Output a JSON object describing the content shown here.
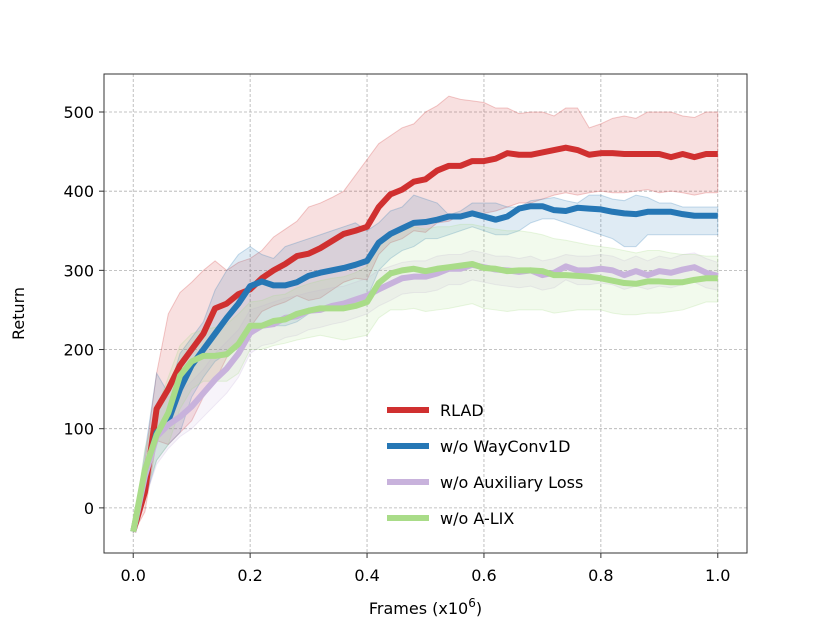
{
  "chart_data": {
    "type": "line",
    "xlabel": "Frames (x10",
    "xlabel_exponent": "6",
    "xlabel_suffix": ")",
    "ylabel": "Return",
    "xlim": [
      -0.05,
      1.05
    ],
    "ylim": [
      -57,
      548
    ],
    "xticks": [
      0.0,
      0.2,
      0.4,
      0.6,
      0.8,
      1.0
    ],
    "xtick_labels": [
      "0.0",
      "0.2",
      "0.4",
      "0.6",
      "0.8",
      "1.0"
    ],
    "yticks": [
      0,
      100,
      200,
      300,
      400,
      500
    ],
    "ytick_labels": [
      "0",
      "100",
      "200",
      "300",
      "400",
      "500"
    ],
    "grid": true,
    "legend_position": "lower-center",
    "x": [
      0.0,
      0.02,
      0.04,
      0.06,
      0.08,
      0.1,
      0.12,
      0.14,
      0.16,
      0.18,
      0.2,
      0.22,
      0.24,
      0.26,
      0.28,
      0.3,
      0.32,
      0.34,
      0.36,
      0.38,
      0.4,
      0.42,
      0.44,
      0.46,
      0.48,
      0.5,
      0.52,
      0.54,
      0.56,
      0.58,
      0.6,
      0.62,
      0.64,
      0.66,
      0.68,
      0.7,
      0.72,
      0.74,
      0.76,
      0.78,
      0.8,
      0.82,
      0.84,
      0.86,
      0.88,
      0.9,
      0.92,
      0.94,
      0.96,
      0.98,
      1.0
    ],
    "series": [
      {
        "name": "RLAD",
        "color": "#d03030",
        "values": [
          -30,
          20,
          125,
          150,
          180,
          200,
          220,
          252,
          258,
          270,
          276,
          290,
          300,
          308,
          318,
          321,
          328,
          337,
          346,
          350,
          355,
          380,
          396,
          402,
          412,
          415,
          426,
          432,
          432,
          438,
          438,
          441,
          448,
          446,
          446,
          449,
          452,
          455,
          452,
          446,
          448,
          448,
          447,
          447,
          447,
          447,
          443,
          447,
          443,
          447,
          447
        ],
        "upper": [
          -28,
          60,
          170,
          245,
          272,
          285,
          300,
          312,
          300,
          310,
          315,
          325,
          342,
          352,
          362,
          380,
          385,
          392,
          400,
          420,
          440,
          460,
          470,
          480,
          485,
          500,
          508,
          520,
          516,
          514,
          512,
          505,
          505,
          498,
          500,
          500,
          495,
          505,
          505,
          480,
          485,
          492,
          495,
          492,
          500,
          500,
          500,
          495,
          493,
          500,
          500
        ],
        "lower": [
          -32,
          -5,
          85,
          80,
          95,
          110,
          140,
          160,
          190,
          210,
          228,
          248,
          255,
          260,
          268,
          262,
          265,
          275,
          285,
          290,
          288,
          320,
          335,
          340,
          350,
          348,
          360,
          362,
          370,
          370,
          372,
          375,
          380,
          385,
          385,
          390,
          395,
          398,
          395,
          398,
          400,
          398,
          398,
          400,
          402,
          398,
          400,
          398,
          395,
          398,
          398
        ]
      },
      {
        "name": "w/o WayConv1D",
        "color": "#2677b5",
        "values": [
          -30,
          40,
          95,
          110,
          150,
          180,
          200,
          220,
          240,
          258,
          280,
          286,
          281,
          281,
          285,
          293,
          297,
          300,
          303,
          307,
          312,
          335,
          346,
          353,
          360,
          361,
          364,
          368,
          368,
          372,
          368,
          364,
          368,
          378,
          381,
          381,
          376,
          375,
          379,
          378,
          377,
          374,
          372,
          371,
          374,
          374,
          374,
          371,
          369,
          369,
          369
        ],
        "upper": [
          -28,
          70,
          170,
          145,
          195,
          215,
          235,
          275,
          300,
          320,
          330,
          320,
          315,
          330,
          335,
          340,
          345,
          350,
          355,
          360,
          350,
          360,
          375,
          380,
          395,
          390,
          385,
          370,
          375,
          385,
          385,
          385,
          380,
          380,
          388,
          390,
          392,
          388,
          385,
          395,
          395,
          390,
          388,
          395,
          392,
          385,
          385,
          380,
          380,
          380,
          380
        ],
        "lower": [
          -32,
          10,
          60,
          80,
          95,
          140,
          165,
          185,
          195,
          210,
          230,
          230,
          230,
          230,
          235,
          245,
          250,
          252,
          252,
          255,
          265,
          300,
          315,
          325,
          330,
          340,
          340,
          345,
          350,
          355,
          350,
          345,
          345,
          350,
          360,
          365,
          365,
          360,
          355,
          350,
          345,
          340,
          330,
          330,
          345,
          345,
          345,
          345,
          345,
          345,
          345
        ]
      },
      {
        "name": "w/o Auxiliary Loss",
        "color": "#c8b2dc",
        "values": [
          -30,
          40,
          90,
          105,
          115,
          128,
          145,
          162,
          176,
          195,
          221,
          230,
          232,
          240,
          242,
          249,
          250,
          255,
          258,
          263,
          268,
          276,
          283,
          290,
          292,
          292,
          296,
          302,
          302,
          307,
          304,
          301,
          300,
          298,
          300,
          294,
          297,
          305,
          300,
          300,
          302,
          300,
          294,
          299,
          294,
          299,
          297,
          301,
          304,
          297,
          293
        ],
        "upper": [
          -28,
          70,
          130,
          140,
          145,
          160,
          175,
          195,
          210,
          225,
          250,
          255,
          260,
          265,
          268,
          272,
          275,
          278,
          280,
          285,
          290,
          300,
          305,
          310,
          312,
          312,
          318,
          320,
          320,
          325,
          322,
          318,
          318,
          315,
          318,
          312,
          315,
          320,
          318,
          318,
          320,
          318,
          312,
          318,
          312,
          318,
          315,
          320,
          322,
          315,
          310
        ],
        "lower": [
          -32,
          10,
          55,
          75,
          90,
          100,
          115,
          130,
          145,
          165,
          195,
          205,
          208,
          215,
          218,
          225,
          228,
          232,
          235,
          240,
          245,
          255,
          262,
          270,
          272,
          272,
          275,
          282,
          282,
          288,
          285,
          282,
          280,
          278,
          280,
          275,
          278,
          288,
          282,
          282,
          284,
          282,
          276,
          280,
          276,
          280,
          278,
          282,
          285,
          278,
          275
        ]
      },
      {
        "name": "w/o A-LIX",
        "color": "#a9dc88",
        "values": [
          -30,
          48,
          92,
          120,
          167,
          185,
          192,
          192,
          194,
          207,
          230,
          230,
          236,
          238,
          245,
          249,
          252,
          252,
          252,
          255,
          260,
          284,
          296,
          300,
          302,
          299,
          302,
          304,
          306,
          308,
          303,
          302,
          299,
          300,
          300,
          299,
          294,
          294,
          293,
          292,
          290,
          287,
          284,
          283,
          286,
          286,
          285,
          285,
          288,
          290,
          290
        ],
        "upper": [
          -28,
          75,
          125,
          165,
          205,
          220,
          225,
          228,
          232,
          245,
          260,
          262,
          268,
          270,
          278,
          283,
          287,
          290,
          292,
          297,
          305,
          330,
          345,
          350,
          355,
          352,
          355,
          355,
          358,
          358,
          355,
          352,
          350,
          350,
          348,
          345,
          340,
          338,
          335,
          332,
          330,
          328,
          325,
          322,
          325,
          325,
          322,
          320,
          320,
          318,
          318
        ],
        "lower": [
          -32,
          20,
          60,
          80,
          125,
          150,
          160,
          160,
          160,
          170,
          200,
          200,
          205,
          208,
          212,
          215,
          218,
          215,
          212,
          215,
          218,
          240,
          250,
          250,
          252,
          248,
          250,
          252,
          255,
          258,
          252,
          250,
          248,
          250,
          250,
          250,
          246,
          248,
          250,
          250,
          250,
          246,
          244,
          244,
          246,
          246,
          248,
          250,
          255,
          260,
          260
        ]
      }
    ]
  }
}
